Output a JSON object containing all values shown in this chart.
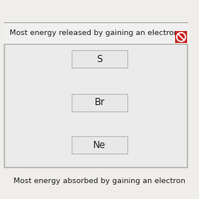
{
  "title_top": "Most energy released by gaining an electron",
  "title_bottom": "Most energy absorbed by gaining an electron",
  "elements": [
    "S",
    "Br",
    "Ne"
  ],
  "box_bg": "#e8e8e8",
  "box_border": "#bbbbbb",
  "outer_border": "#aaaaaa",
  "outer_bg": "#e8e8e8",
  "header_bg": "#f0f0f0",
  "header_text_color": "#222222",
  "element_text_color": "#222222",
  "cancel_bg": "#cc2222",
  "page_bg": "#f0eeeb",
  "font_size_header": 6.8,
  "font_size_element": 8.5,
  "font_size_footer": 6.8
}
